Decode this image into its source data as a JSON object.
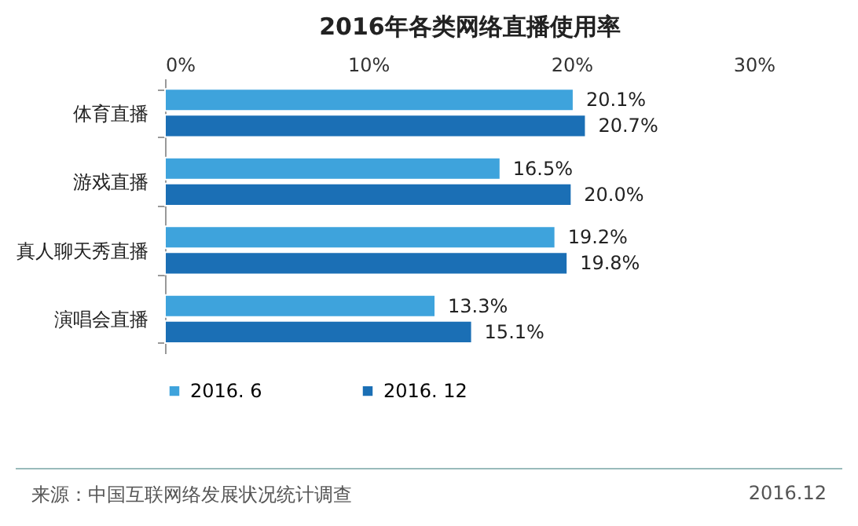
{
  "chart_data": {
    "type": "bar",
    "orientation": "horizontal",
    "title": "2016年各类网络直播使用率",
    "categories": [
      "体育直播",
      "游戏直播",
      "真人聊天秀直播",
      "演唱会直播"
    ],
    "series": [
      {
        "name": "2016. 6",
        "color": "#3ea3dc",
        "values": [
          20.1,
          16.5,
          19.2,
          13.3
        ],
        "value_labels": [
          "20.1%",
          "16.5%",
          "19.2%",
          "13.3%"
        ]
      },
      {
        "name": "2016. 12",
        "color": "#1b6fb5",
        "values": [
          20.7,
          20.0,
          19.8,
          15.1
        ],
        "value_labels": [
          "20.7%",
          "20.0%",
          "19.8%",
          "15.1%"
        ]
      }
    ],
    "xlim": [
      0,
      30
    ],
    "xticks": [
      {
        "value": 0,
        "label": "0%"
      },
      {
        "value": 10,
        "label": "10%"
      },
      {
        "value": 20,
        "label": "20%"
      },
      {
        "value": 30,
        "label": "30%"
      }
    ],
    "grid": false,
    "legend": "bottom",
    "annotations": [
      "来源：中国互联网络发展状况统计调查",
      "2016.12"
    ]
  }
}
